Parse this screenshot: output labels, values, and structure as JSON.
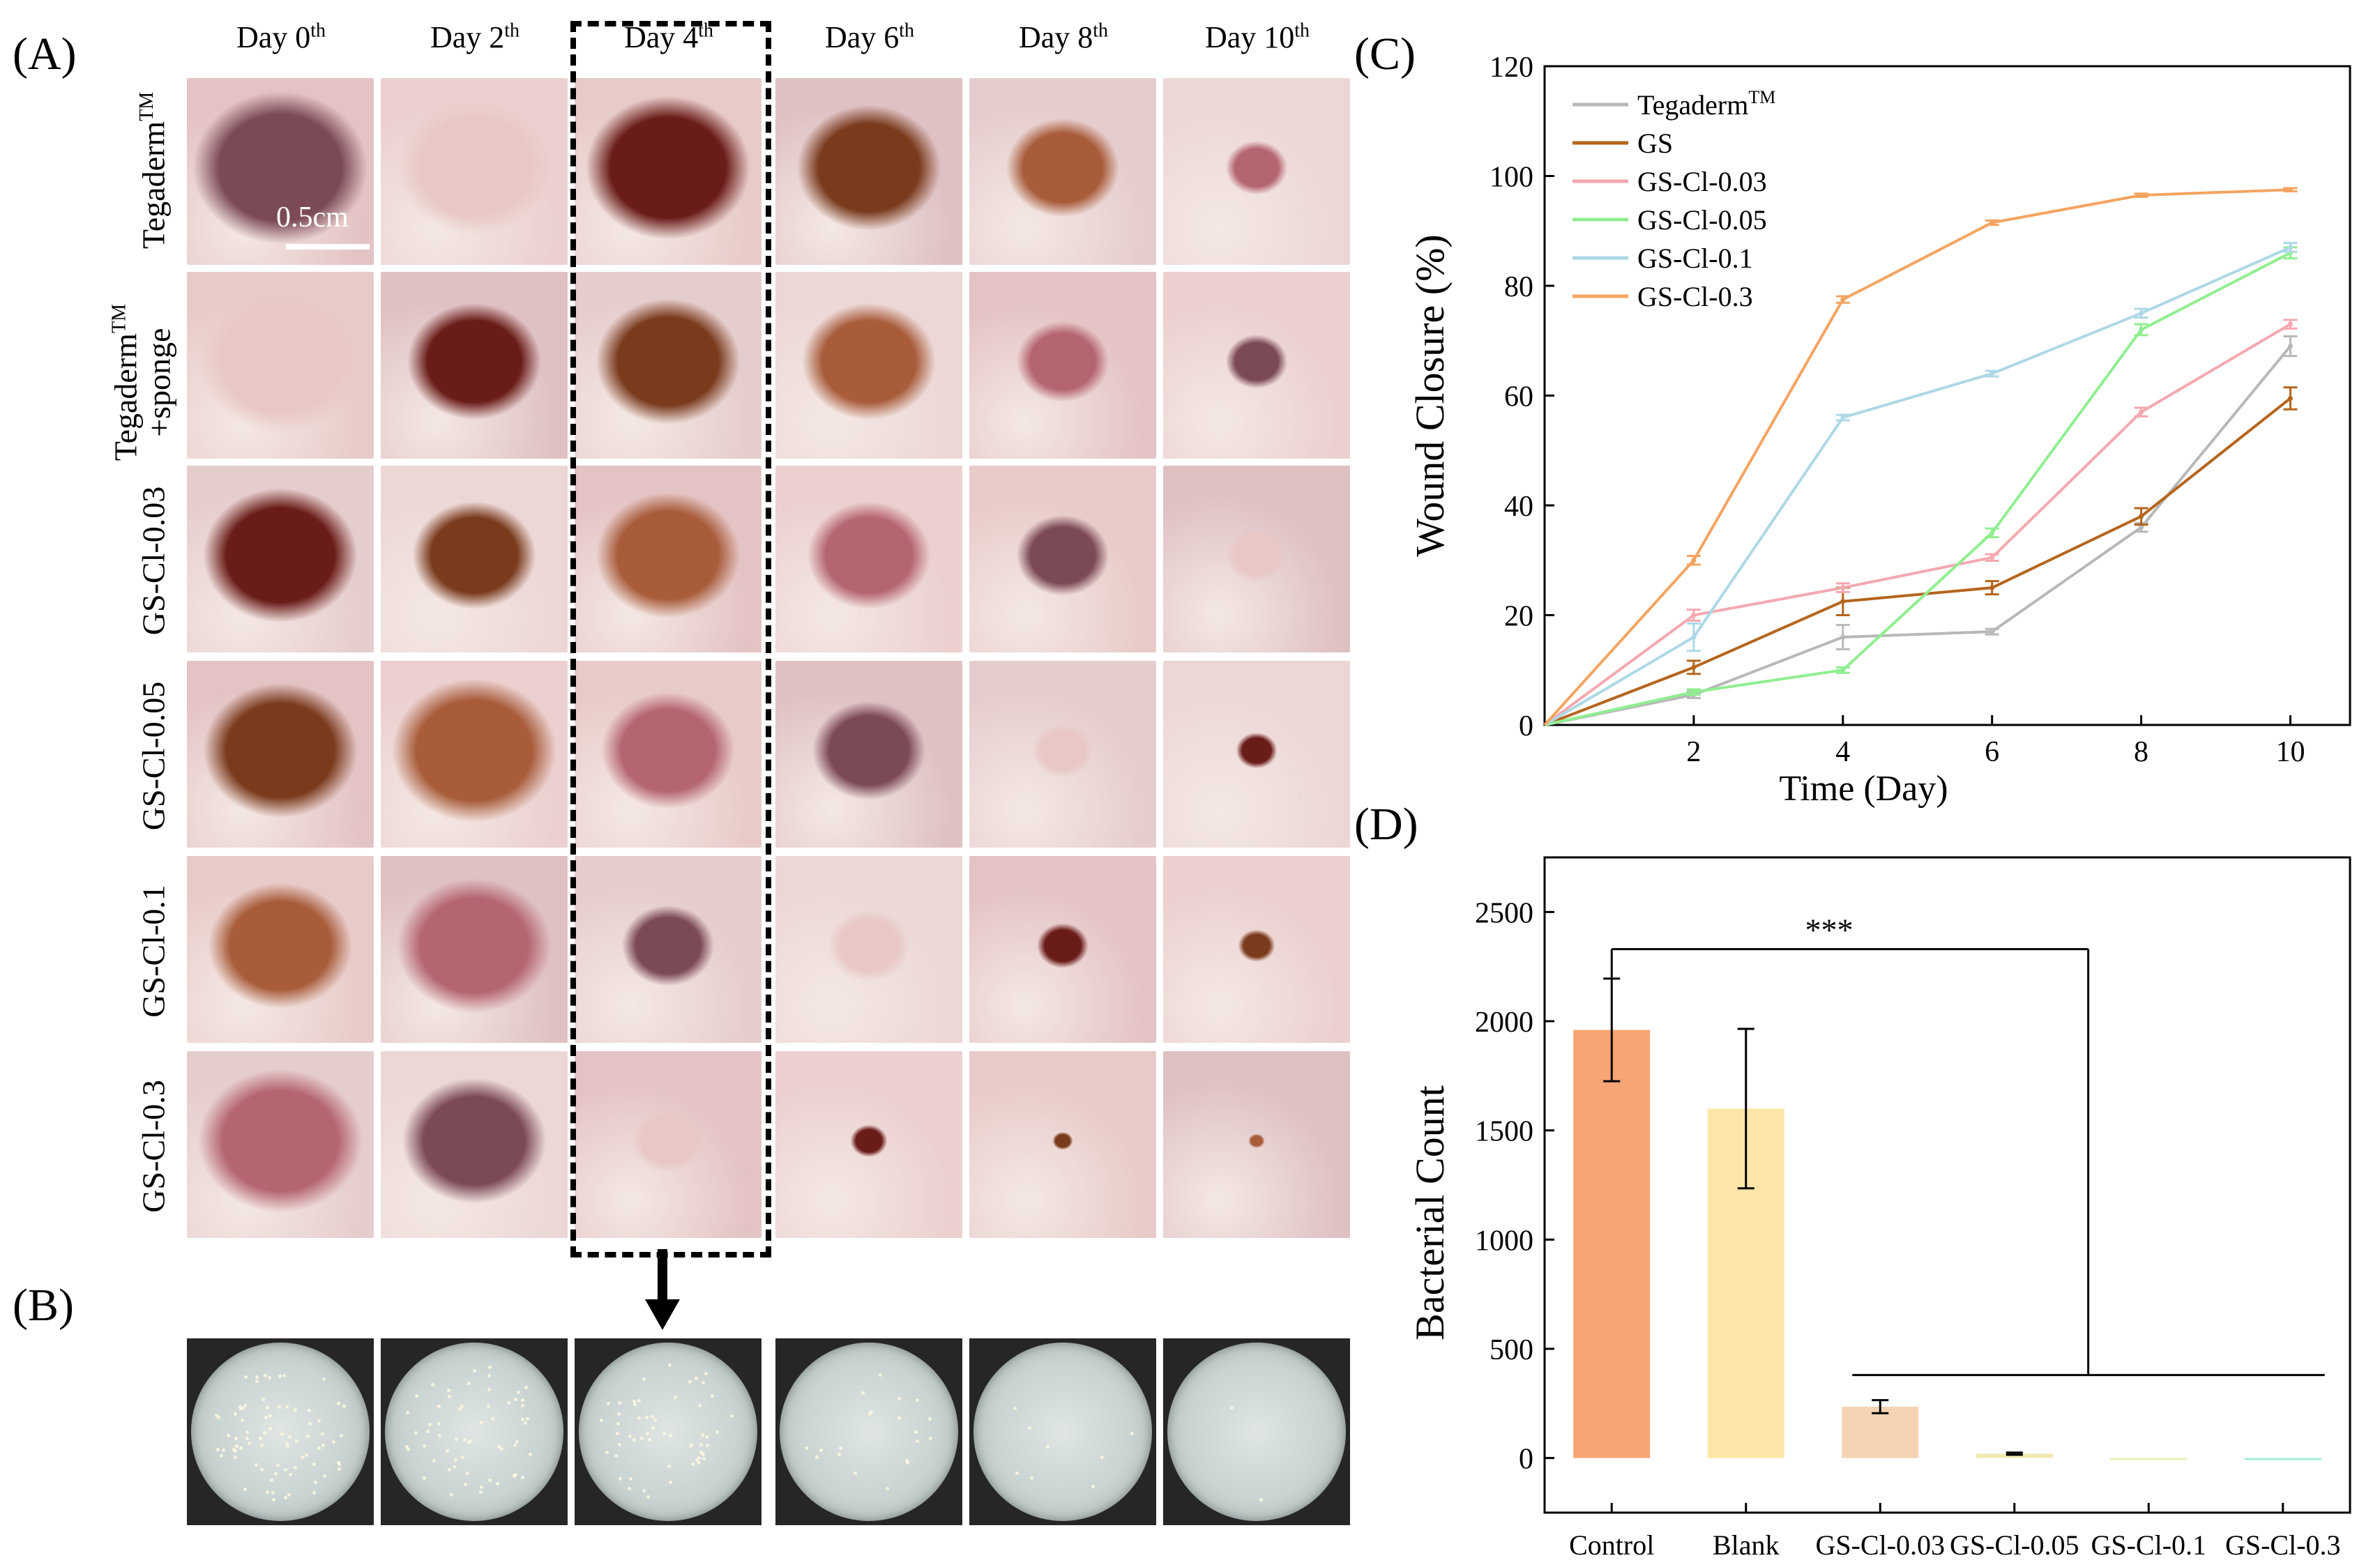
{
  "panel_a": {
    "letter": "(A)",
    "columns": [
      {
        "day": "Day 0",
        "sup": "th"
      },
      {
        "day": "Day 2",
        "sup": "th"
      },
      {
        "day": "Day 4",
        "sup": "th"
      },
      {
        "day": "Day 6",
        "sup": "th"
      },
      {
        "day": "Day 8",
        "sup": "th"
      },
      {
        "day": "Day 10",
        "sup": "th"
      }
    ],
    "rows": [
      {
        "line1": "Tegaderm",
        "sup": "TM",
        "line2": ""
      },
      {
        "line1": "Tegaderm",
        "sup": "TM",
        "line2": "+sponge"
      },
      {
        "line1": "GS-Cl-0.03",
        "sup": "",
        "line2": ""
      },
      {
        "line1": "GS-Cl-0.05",
        "sup": "",
        "line2": ""
      },
      {
        "line1": "GS-Cl-0.1",
        "sup": "",
        "line2": ""
      },
      {
        "line1": "GS-Cl-0.3",
        "sup": "",
        "line2": ""
      }
    ],
    "scale_bar": "0.5cm",
    "wound_colors": [
      "#7c4a56",
      "#e8c7c4",
      "#6a1c18",
      "#7a3b1d",
      "#a85c3a",
      "#b56570"
    ]
  },
  "panel_b": {
    "letter": "(B)"
  },
  "panel_c": {
    "letter": "(C)"
  },
  "panel_d": {
    "letter": "(D)"
  },
  "chart_data": [
    {
      "id": "C",
      "type": "line",
      "title": "",
      "xlabel": "Time (Day)",
      "ylabel": "Wound Closure (%)",
      "xlim": [
        0,
        10.8
      ],
      "ylim": [
        0,
        120
      ],
      "x_ticks": [
        2,
        4,
        6,
        8,
        10
      ],
      "y_ticks": [
        0,
        20,
        40,
        60,
        80,
        100,
        120
      ],
      "x": [
        0,
        2,
        4,
        6,
        8,
        10
      ],
      "series": [
        {
          "name": "Tegaderm",
          "name_sup": "TM",
          "color": "#b8b8b8",
          "values": [
            0,
            5.5,
            16,
            17,
            36,
            69
          ],
          "errors": [
            0,
            0.6,
            2.2,
            0.5,
            0.8,
            1.8
          ]
        },
        {
          "name": "GS",
          "name_sup": "",
          "color": "#b5651d",
          "values": [
            0,
            10.5,
            22.5,
            25,
            38,
            59.5
          ],
          "errors": [
            0,
            1.2,
            2.5,
            1.2,
            1.5,
            2.0
          ]
        },
        {
          "name": "GS-Cl-0.03",
          "name_sup": "",
          "color": "#f4a8b0",
          "values": [
            0,
            20,
            25,
            30.5,
            57,
            73
          ],
          "errors": [
            0,
            1.0,
            0.8,
            0.6,
            0.8,
            0.8
          ]
        },
        {
          "name": "GS-Cl-0.05",
          "name_sup": "",
          "color": "#90ee90",
          "values": [
            0,
            6,
            10,
            35,
            72,
            86
          ],
          "errors": [
            0,
            0.5,
            0.5,
            0.8,
            1.0,
            1.0
          ]
        },
        {
          "name": "GS-Cl-0.1",
          "name_sup": "",
          "color": "#add8e6",
          "values": [
            0,
            16,
            56,
            64,
            75,
            87
          ],
          "errors": [
            0,
            2.5,
            0.5,
            0.5,
            0.8,
            0.8
          ]
        },
        {
          "name": "GS-Cl-0.3",
          "name_sup": "",
          "color": "#f4a460",
          "values": [
            0,
            30,
            77.5,
            91.5,
            96.5,
            97.5
          ],
          "errors": [
            0,
            0.8,
            0.6,
            0.4,
            0.3,
            0.3
          ]
        }
      ],
      "legend_position": "top-left"
    },
    {
      "id": "D",
      "type": "bar",
      "title": "",
      "xlabel": "",
      "ylabel": "Bacterial Count",
      "ylim": [
        -250,
        2750
      ],
      "y_ticks": [
        0,
        500,
        1000,
        1500,
        2000,
        2500
      ],
      "categories": [
        "Control",
        "Blank",
        "GS-Cl-0.03",
        "GS-Cl-0.05",
        "GS-Cl-0.1",
        "GS-Cl-0.3"
      ],
      "values": [
        1960,
        1600,
        235,
        20,
        0,
        0
      ],
      "errors": [
        235,
        365,
        30,
        5,
        0,
        0
      ],
      "colors": [
        "#f7a574",
        "#fde6a8",
        "#f6d3b3",
        "#f1eab0",
        "#e3f4b8",
        "#9ff0d4"
      ],
      "annotation": "***"
    }
  ]
}
